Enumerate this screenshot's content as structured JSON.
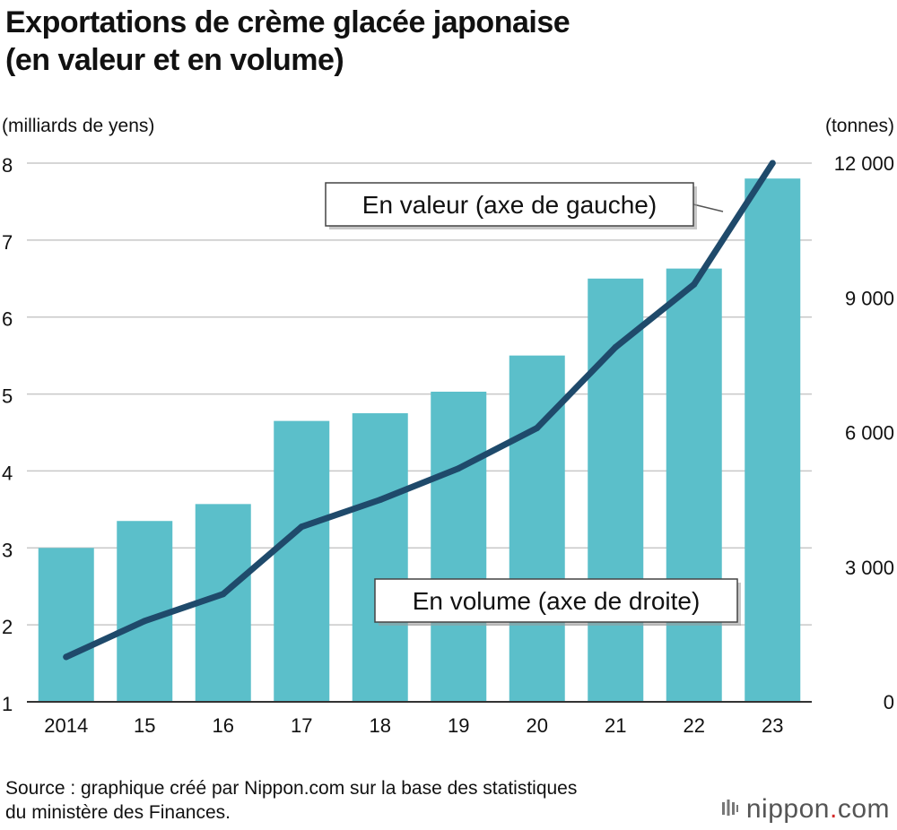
{
  "title_line1": "Exportations de crème glacée japonaise",
  "title_line2": "(en valeur et en volume)",
  "source_line1": "Source : graphique créé par Nippon.com sur la base des statistiques",
  "source_line2": "du ministère des Finances.",
  "brand": {
    "name": "nippon",
    "dot": ".",
    "suffix": "com"
  },
  "colors": {
    "bar": "#5bbfca",
    "line": "#1f4a6b",
    "grid": "#c8c8c8",
    "axis": "#333333",
    "brand_dot": "#d52b2b"
  },
  "chart_data": {
    "type": "bar",
    "categories": [
      "2014",
      "15",
      "16",
      "17",
      "18",
      "19",
      "20",
      "21",
      "22",
      "23"
    ],
    "series": [
      {
        "name": "En valeur (axe de gauche)",
        "type": "bar",
        "axis": "left",
        "values": [
          3.0,
          3.35,
          3.57,
          4.65,
          4.75,
          5.03,
          5.5,
          6.5,
          6.63,
          7.8
        ]
      },
      {
        "name": "En volume (axe de droite)",
        "type": "line",
        "axis": "right",
        "values": [
          1000,
          1800,
          2400,
          3900,
          4500,
          5200,
          6100,
          7900,
          9300,
          12000
        ]
      }
    ],
    "y_left": {
      "label": "(milliards de yens)",
      "lim": [
        1,
        8
      ],
      "ticks": [
        "1",
        "2",
        "3",
        "4",
        "5",
        "6",
        "7",
        "8"
      ]
    },
    "y_right": {
      "label": "(tonnes)",
      "lim": [
        0,
        12000
      ],
      "ticks": [
        "0",
        "3 000",
        "6 000",
        "9 000",
        "12 000"
      ]
    },
    "grid": true
  }
}
